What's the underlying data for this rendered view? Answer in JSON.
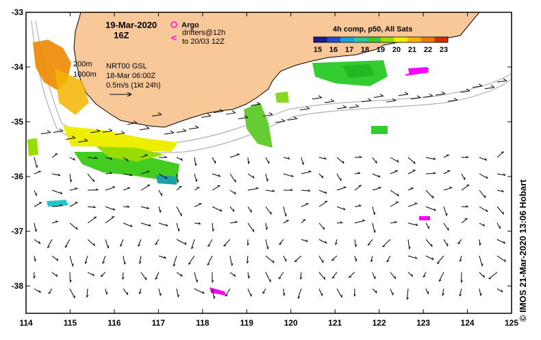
{
  "map": {
    "date": "19-Mar-2020",
    "hour": "16Z",
    "legend_argo": "Argo",
    "legend_drifters_line1": "drifters@12h",
    "legend_drifters_line2": "to 20/03 12Z",
    "isobath_200": "200m",
    "isobath_1000": "1000m",
    "sla_source": "NRT00 GSL",
    "sla_time": "18-Mar 06:00Z",
    "vector_scale": "0.5m/s (1kt 24h)",
    "colorbar_title": "4h comp, p50, All Sats",
    "colorbar_ticks": [
      "15",
      "16",
      "17",
      "18",
      "19",
      "20",
      "21",
      "22",
      "23"
    ],
    "lon_ticks": [
      "114",
      "115",
      "116",
      "117",
      "118",
      "119",
      "120",
      "121",
      "122",
      "123",
      "124",
      "125"
    ],
    "lat_ticks": [
      "-33",
      "-34",
      "-35",
      "-36",
      "-37",
      "-38"
    ],
    "credit": "© IMOS 21-Mar-2020 13:06 Hobart",
    "lon_range": [
      114,
      125
    ],
    "lat_range": [
      -38.5,
      -33
    ],
    "colors": {
      "land": "#f8c898",
      "argo": "#ff33cc",
      "drifter": "#ff00ff",
      "isobath": "#b0b0b0"
    },
    "colorbar_colors": [
      "#1a1a8c",
      "#1f4fd0",
      "#1aa0d8",
      "#22c8a0",
      "#33cc33",
      "#99dd00",
      "#eeee00",
      "#f5b400",
      "#ee7700",
      "#cc3300"
    ]
  }
}
